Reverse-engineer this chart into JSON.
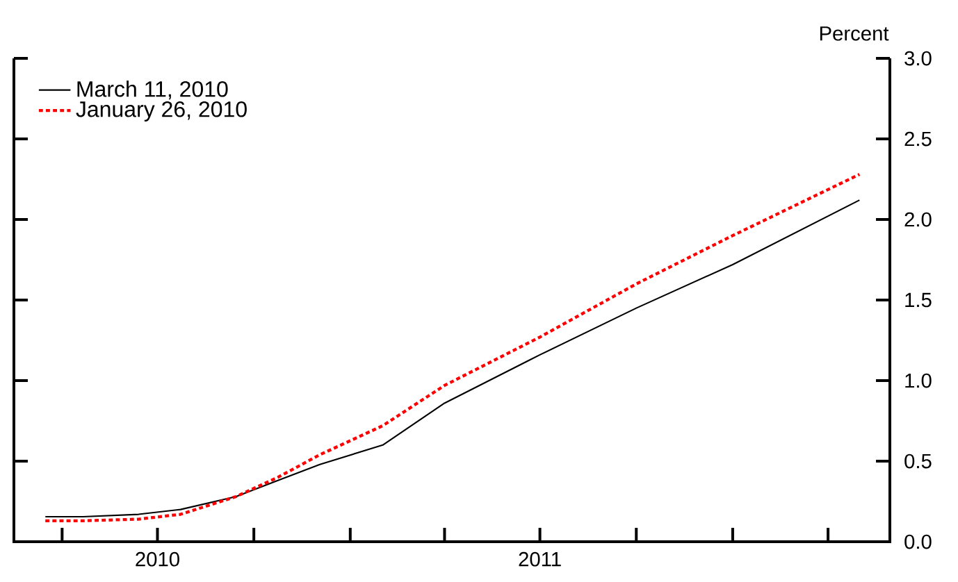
{
  "chart_data": {
    "type": "line",
    "ylabel": "Percent",
    "x": [
      "2010-03-16",
      "2010-04-21",
      "2010-06-13",
      "2010-07-23",
      "2010-09-14",
      "2010-10-24",
      "2010-12-03",
      "2011-02-01",
      "2011-04-01",
      "2011-07-01",
      "2011-10-01",
      "2012-01-01",
      "2012-05-01"
    ],
    "series": [
      {
        "name": "March 11, 2010",
        "color": "#000000",
        "line_style": "solid",
        "values": [
          0.155,
          0.155,
          0.17,
          0.2,
          0.28,
          0.38,
          0.48,
          0.6,
          0.86,
          1.16,
          1.45,
          1.72,
          2.12
        ]
      },
      {
        "name": "January 26, 2010",
        "color": "#ff0000",
        "line_style": "dotted",
        "values": [
          0.13,
          0.13,
          0.14,
          0.17,
          0.28,
          0.4,
          0.54,
          0.72,
          0.97,
          1.27,
          1.6,
          1.9,
          2.28
        ]
      }
    ],
    "xlim": [
      "2010-02-14",
      "2012-05-30"
    ],
    "xticks": [
      {
        "value": "2010-04-01",
        "label": null
      },
      {
        "value": "2010-07-01",
        "label": "2010"
      },
      {
        "value": "2010-10-01",
        "label": null
      },
      {
        "value": "2011-01-01",
        "label": null
      },
      {
        "value": "2011-04-01",
        "label": null
      },
      {
        "value": "2011-07-01",
        "label": "2011"
      },
      {
        "value": "2011-10-01",
        "label": null
      },
      {
        "value": "2012-01-01",
        "label": null
      },
      {
        "value": "2012-04-01",
        "label": null
      }
    ],
    "ylim": [
      0,
      3
    ],
    "yticks": [
      {
        "value": 0,
        "label": "0.0"
      },
      {
        "value": 0.5,
        "label": "0.5"
      },
      {
        "value": 1,
        "label": "1.0"
      },
      {
        "value": 1.5,
        "label": "1.5"
      },
      {
        "value": 2,
        "label": "2.0"
      },
      {
        "value": 2.5,
        "label": "2.5"
      },
      {
        "value": 3,
        "label": "3.0"
      }
    ],
    "grid": false,
    "legend": "top left",
    "marker": "none"
  }
}
